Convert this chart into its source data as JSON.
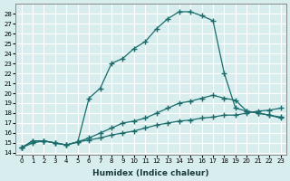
{
  "xlabel": "Humidex (Indice chaleur)",
  "bg_color": "#d8eeee",
  "grid_color": "#ffffff",
  "line_color": "#1a6b6b",
  "xlim": [
    -0.5,
    23.5
  ],
  "ylim": [
    13.8,
    29.0
  ],
  "xticks": [
    0,
    1,
    2,
    3,
    4,
    5,
    6,
    7,
    8,
    9,
    10,
    11,
    12,
    13,
    14,
    15,
    16,
    17,
    18,
    19,
    20,
    21,
    22,
    23
  ],
  "yticks": [
    14,
    15,
    16,
    17,
    18,
    19,
    20,
    21,
    22,
    23,
    24,
    25,
    26,
    27,
    28
  ],
  "curve1_x": [
    0,
    1,
    2,
    3,
    4,
    5,
    6,
    7,
    8,
    9,
    10,
    11,
    12,
    13,
    14,
    15,
    16,
    17,
    18,
    19,
    20,
    21,
    22,
    23
  ],
  "curve1_y": [
    14.5,
    15.2,
    15.2,
    15.0,
    14.8,
    15.1,
    19.5,
    20.5,
    23.0,
    23.5,
    24.5,
    25.2,
    26.5,
    27.5,
    28.2,
    28.2,
    27.8,
    27.3,
    22.0,
    18.5,
    18.2,
    18.0,
    17.8,
    17.6
  ],
  "curve2_x": [
    0,
    1,
    2,
    3,
    4,
    5,
    6,
    7,
    8,
    9,
    10,
    11,
    12,
    13,
    14,
    15,
    16,
    17,
    18,
    19,
    20,
    21,
    22,
    23
  ],
  "curve2_y": [
    14.5,
    15.2,
    15.2,
    15.0,
    14.8,
    15.1,
    15.5,
    16.0,
    16.5,
    17.0,
    17.2,
    17.5,
    18.0,
    18.5,
    19.0,
    19.2,
    19.5,
    19.8,
    19.5,
    19.3,
    18.2,
    18.0,
    17.8,
    17.5
  ],
  "curve3_x": [
    0,
    1,
    2,
    3,
    4,
    5,
    6,
    7,
    8,
    9,
    10,
    11,
    12,
    13,
    14,
    15,
    16,
    17,
    18,
    19,
    20,
    21,
    22,
    23
  ],
  "curve3_y": [
    14.5,
    15.0,
    15.2,
    15.0,
    14.8,
    15.1,
    15.3,
    15.5,
    15.8,
    16.0,
    16.2,
    16.5,
    16.8,
    17.0,
    17.2,
    17.3,
    17.5,
    17.6,
    17.8,
    17.8,
    18.0,
    18.2,
    18.3,
    18.5
  ]
}
